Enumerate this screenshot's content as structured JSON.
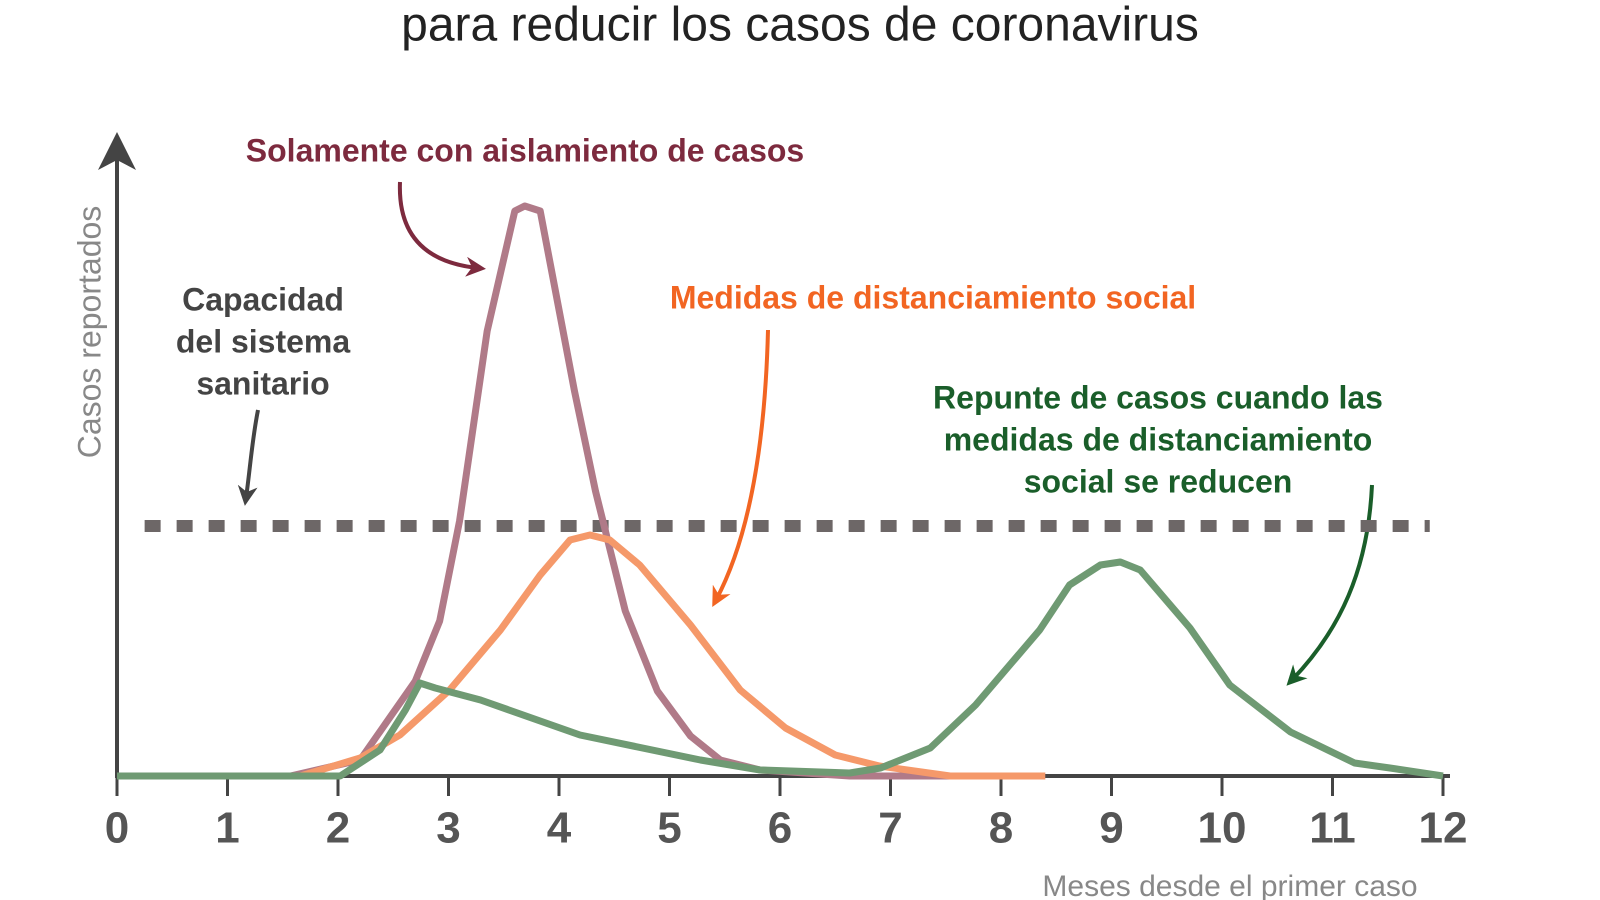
{
  "chart_data": {
    "type": "line",
    "title": "para reducir los casos de coronavirus",
    "y_label": "Casos reportados",
    "x_label": "Meses desde el primer caso",
    "xlim": [
      0,
      12
    ],
    "ylim": [
      0,
      260
    ],
    "xticks": [
      0,
      1,
      2,
      3,
      4,
      5,
      6,
      7,
      8,
      9,
      10,
      11,
      12
    ],
    "capacity": 100,
    "capacity_label": [
      "Capacidad",
      "del sistema",
      "sanitario"
    ],
    "capacity_color": "#6d6767",
    "series": [
      {
        "name": "Solamente con aislamiento de casos",
        "color": "#b07a88",
        "label_color": "#7d2a3e",
        "x": [
          0,
          1.57,
          2.2,
          2.7,
          2.92,
          3.1,
          3.35,
          3.6,
          3.69,
          3.83,
          4.14,
          4.33,
          4.6,
          4.89,
          5.19,
          5.46,
          5.82,
          6.63,
          8.4
        ],
        "values": [
          0,
          0,
          6.4,
          38,
          62,
          102,
          178,
          226,
          228,
          226,
          154,
          114,
          66,
          34,
          16,
          6.4,
          2.4,
          0,
          0
        ]
      },
      {
        "name": "Medidas de distanciamiento social",
        "color": "#f5996a",
        "label_color": "#f26522",
        "x": [
          0,
          1.66,
          2.2,
          2.56,
          3.01,
          3.47,
          3.83,
          4.1,
          4.28,
          4.46,
          4.73,
          5.19,
          5.64,
          6.05,
          6.5,
          6.9,
          7.54,
          8.4
        ],
        "values": [
          0,
          0,
          7.2,
          16.4,
          34.4,
          58.4,
          80.4,
          94.4,
          96.4,
          94.4,
          84.4,
          60.4,
          34.4,
          19.2,
          8.4,
          4,
          0,
          0
        ]
      },
      {
        "name": [
          "Repunte de casos cuando las",
          "medidas de distanciamiento",
          "social se reducen"
        ],
        "color": "#6f9a73",
        "label_color": "#1a5e2a",
        "x": [
          0,
          2.02,
          2.38,
          2.61,
          2.74,
          2.88,
          3.29,
          4.19,
          5.28,
          5.82,
          6.63,
          6.91,
          7.36,
          7.77,
          8.35,
          8.62,
          8.9,
          9.08,
          9.26,
          9.71,
          10.07,
          10.62,
          11.2,
          11.52,
          12
        ],
        "values": [
          0,
          0,
          10.4,
          26.4,
          37.2,
          35.2,
          30.4,
          16.4,
          6.4,
          2.4,
          1.2,
          3.2,
          11.2,
          28.4,
          58.4,
          76.4,
          84.4,
          85.6,
          82.4,
          59.2,
          36.4,
          17.6,
          5.2,
          3.2,
          0
        ]
      }
    ]
  }
}
